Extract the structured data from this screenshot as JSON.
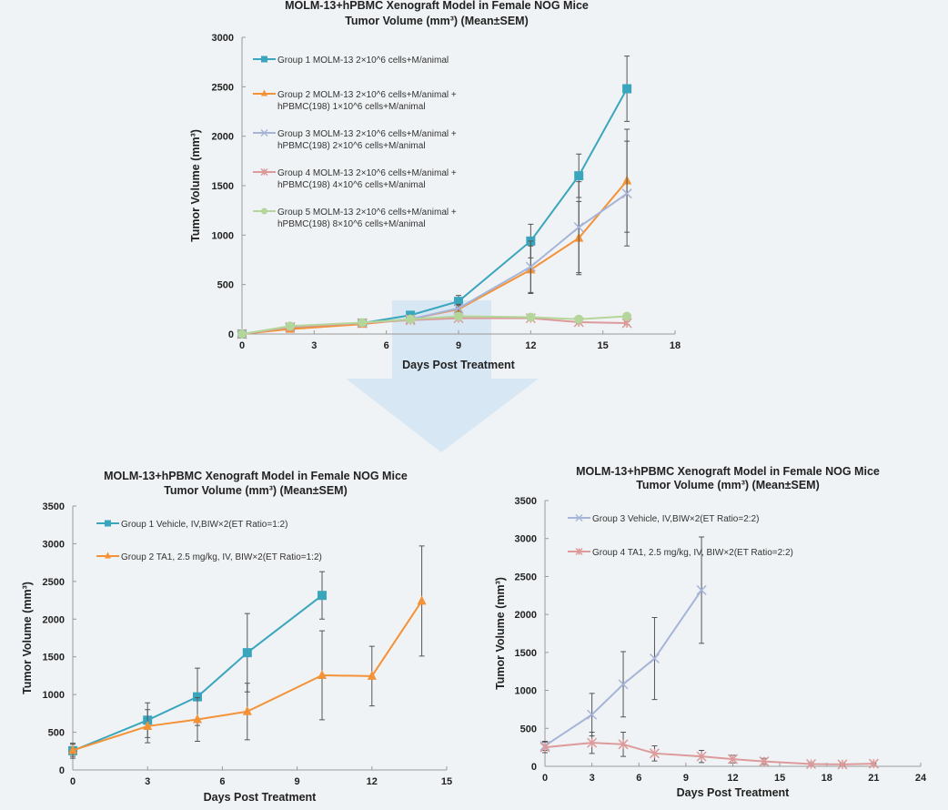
{
  "arrow_color": "#d3e4f3",
  "chart_data": [
    {
      "type": "line",
      "title": [
        "MOLM-13+hPBMC Xenograft Model in Female NOG Mice",
        "Tumor Volume (mm³)  (Mean±SEM)"
      ],
      "xlabel": "Days Post Treatment",
      "ylabel": "Tumor Volume (mm³)",
      "xlim": [
        0,
        18
      ],
      "xticks": [
        0,
        3,
        6,
        9,
        12,
        15,
        18
      ],
      "ylim": [
        0,
        3000
      ],
      "yticks": [
        0,
        500,
        1000,
        1500,
        2000,
        2500,
        3000
      ],
      "grid": false,
      "legend": "top-left",
      "series": [
        {
          "name": [
            "Group 1 MOLM-13  2×10^6 cells+M/animal"
          ],
          "color": "#3aa6bd",
          "marker": "square",
          "x": [
            0,
            2,
            5,
            7,
            9,
            12,
            14,
            16
          ],
          "y": [
            0,
            60,
            110,
            190,
            330,
            940,
            1600,
            2480
          ],
          "err": [
            0,
            10,
            15,
            20,
            60,
            170,
            220,
            330
          ]
        },
        {
          "name": [
            "Group 2 MOLM-13  2×10^6 cells+M/animal +",
            "hPBMC(198) 1×10^6 cells+M/animal"
          ],
          "color": "#f39237",
          "marker": "triangle",
          "x": [
            0,
            2,
            5,
            7,
            9,
            12,
            14,
            16
          ],
          "y": [
            0,
            50,
            100,
            150,
            250,
            650,
            970,
            1550
          ],
          "err": [
            0,
            10,
            15,
            20,
            40,
            240,
            370,
            520
          ]
        },
        {
          "name": [
            "Group 3 MOLM-13  2×10^6 cells+M/animal +",
            "hPBMC(198) 2×10^6 cells+M/animal"
          ],
          "color": "#a6b4d8",
          "marker": "x",
          "x": [
            0,
            2,
            5,
            7,
            9,
            12,
            14,
            16
          ],
          "y": [
            0,
            70,
            110,
            150,
            260,
            680,
            1080,
            1420
          ],
          "err": [
            0,
            10,
            15,
            20,
            40,
            260,
            460,
            530
          ]
        },
        {
          "name": [
            "Group 4 MOLM-13  2×10^6 cells+M/animal +",
            "hPBMC(198) 4×10^6 cells+M/animal"
          ],
          "color": "#dc9a9a",
          "marker": "star",
          "x": [
            0,
            2,
            5,
            7,
            9,
            12,
            14,
            16
          ],
          "y": [
            0,
            70,
            110,
            140,
            160,
            160,
            120,
            110
          ],
          "err": [
            0,
            10,
            10,
            15,
            20,
            20,
            15,
            15
          ]
        },
        {
          "name": [
            "Group 5 MOLM-13  2×10^6 cells+M/animal +",
            "hPBMC(198) 8×10^6 cells+M/animal"
          ],
          "color": "#b5d69a",
          "marker": "circle",
          "x": [
            0,
            2,
            5,
            7,
            9,
            12,
            14,
            16
          ],
          "y": [
            0,
            80,
            115,
            150,
            180,
            170,
            150,
            180
          ],
          "err": [
            0,
            10,
            10,
            15,
            20,
            20,
            15,
            20
          ]
        }
      ]
    },
    {
      "type": "line",
      "title": [
        "MOLM-13+hPBMC Xenograft Model in Female NOG Mice",
        "Tumor Volume (mm³)  (Mean±SEM)"
      ],
      "xlabel": "Days Post Treatment",
      "ylabel": "Tumor Volume (mm³)",
      "xlim": [
        0,
        15
      ],
      "xticks": [
        0,
        3,
        6,
        9,
        12,
        15
      ],
      "ylim": [
        0,
        3500
      ],
      "yticks": [
        0,
        500,
        1000,
        1500,
        2000,
        2500,
        3000,
        3500
      ],
      "grid": false,
      "legend": "top-left",
      "series": [
        {
          "name": [
            "Group 1 Vehicle, IV,BIW×2(ET Ratio=1:2)"
          ],
          "color": "#3aa6bd",
          "marker": "square",
          "x": [
            0,
            3,
            5,
            7,
            10
          ],
          "y": [
            255,
            660,
            970,
            1555,
            2315
          ],
          "err": [
            100,
            230,
            380,
            520,
            315
          ]
        },
        {
          "name": [
            "Group 2 TA1, 2.5 mg/kg, IV, BIW×2(ET Ratio=1:2)"
          ],
          "color": "#f39237",
          "marker": "triangle",
          "x": [
            0,
            3,
            5,
            7,
            10,
            12,
            14
          ],
          "y": [
            260,
            580,
            670,
            775,
            1255,
            1245,
            2240
          ],
          "err": [
            80,
            220,
            290,
            375,
            590,
            395,
            730
          ]
        }
      ]
    },
    {
      "type": "line",
      "title": [
        "MOLM-13+hPBMC Xenograft Model in Female NOG Mice",
        "Tumor Volume (mm³)  (Mean±SEM)"
      ],
      "xlabel": "Days Post Treatment",
      "ylabel": "Tumor Volume (mm³)",
      "xlim": [
        0,
        24
      ],
      "xticks": [
        0,
        3,
        6,
        9,
        12,
        15,
        18,
        21,
        24
      ],
      "ylim": [
        0,
        3500
      ],
      "yticks": [
        0,
        500,
        1000,
        1500,
        2000,
        2500,
        3000,
        3500
      ],
      "grid": false,
      "legend": "top-left",
      "series": [
        {
          "name": [
            "Group 3 Vehicle, IV,BIW×2(ET Ratio=2:2)"
          ],
          "color": "#a6b4d8",
          "marker": "x",
          "x": [
            0,
            3,
            5,
            7,
            10
          ],
          "y": [
            270,
            680,
            1080,
            1420,
            2320
          ],
          "err": [
            60,
            280,
            430,
            540,
            700
          ]
        },
        {
          "name": [
            "Group 4 TA1, 2.5 mg/kg, IV, BIW×2(ET Ratio=2:2)"
          ],
          "color": "#dc9a9a",
          "marker": "star",
          "x": [
            0,
            3,
            5,
            7,
            10,
            12,
            14,
            17,
            19,
            21
          ],
          "y": [
            250,
            310,
            290,
            170,
            130,
            95,
            65,
            30,
            25,
            35
          ],
          "err": [
            70,
            140,
            160,
            100,
            80,
            50,
            40,
            20,
            15,
            10
          ]
        }
      ]
    }
  ]
}
